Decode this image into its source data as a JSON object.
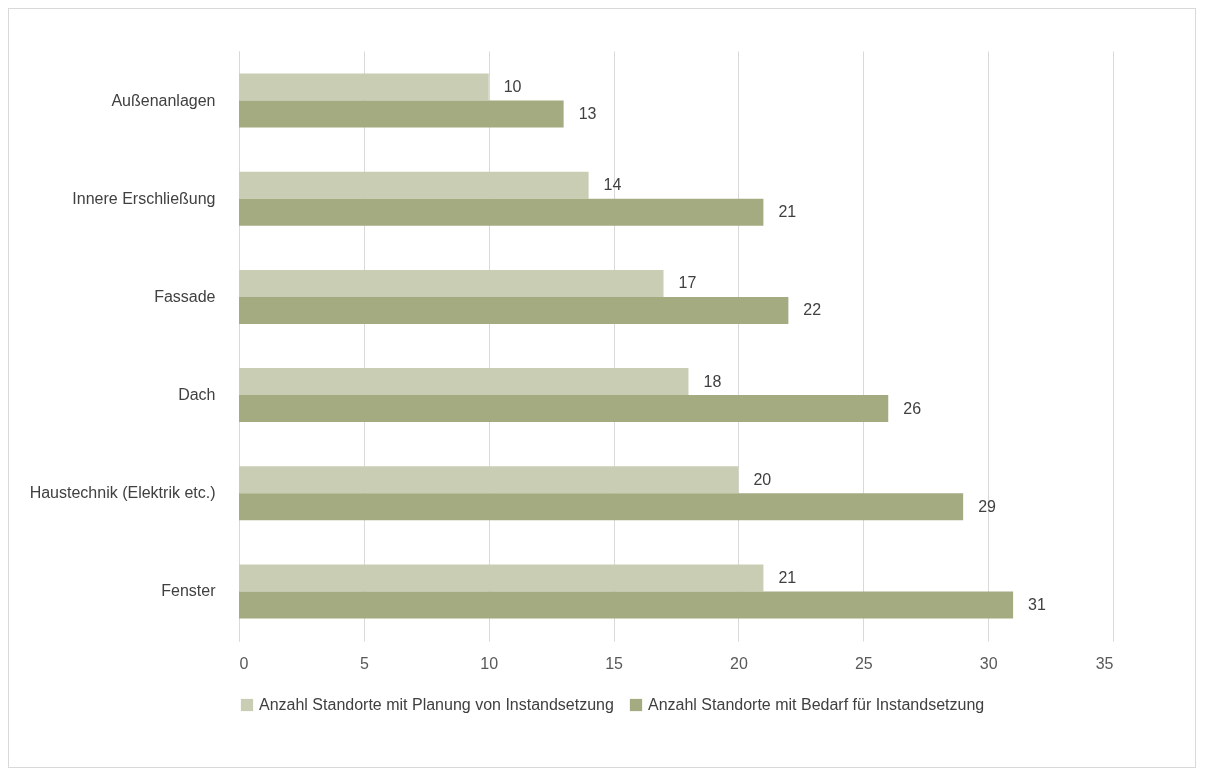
{
  "chart_data": {
    "type": "bar",
    "orientation": "horizontal",
    "categories": [
      "Außenanlagen",
      "Innere Erschließung",
      "Fassade",
      "Dach",
      "Haustechnik (Elektrik etc.)",
      "Fenster"
    ],
    "series": [
      {
        "name": "Anzahl Standorte mit Planung von Instandsetzung",
        "color": "#c8cdb3",
        "values": [
          10,
          14,
          17,
          18,
          20,
          21
        ]
      },
      {
        "name": "Anzahl Standorte mit Bedarf für Instandsetzung",
        "color": "#a4ab80",
        "values": [
          13,
          21,
          22,
          26,
          29,
          31
        ]
      }
    ],
    "xlim": [
      0,
      35
    ],
    "xticks": [
      0,
      5,
      10,
      15,
      20,
      25,
      30,
      35
    ],
    "grid": "x",
    "legend": "bottom",
    "data_labels": true
  }
}
